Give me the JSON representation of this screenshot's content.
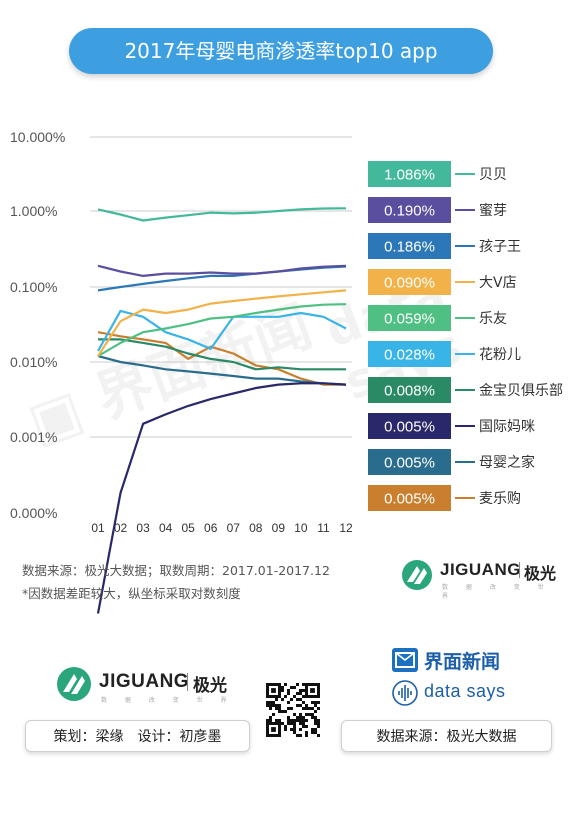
{
  "header": {
    "title": "2017年母婴电商渗透率top10 app"
  },
  "chart_data": {
    "type": "line",
    "title": "2017年母婴电商渗透率top10 app",
    "y_scale": "log",
    "ylim": [
      0.0005,
      10
    ],
    "y_ticks": [
      {
        "value": 10,
        "label": "10.000%"
      },
      {
        "value": 1,
        "label": "1.000%"
      },
      {
        "value": 0.1,
        "label": "0.100%"
      },
      {
        "value": 0.01,
        "label": "0.010%"
      },
      {
        "value": 0.001,
        "label": "0.001%"
      },
      {
        "value": 0.0005,
        "label": "0.000%"
      }
    ],
    "categories": [
      "01",
      "02",
      "03",
      "04",
      "05",
      "06",
      "07",
      "08",
      "09",
      "10",
      "11",
      "12"
    ],
    "grid": true,
    "legend_position": "right",
    "series": [
      {
        "name": "贝贝",
        "value_label": "1.086%",
        "color": "#43b89a",
        "values": [
          1.05,
          0.9,
          0.75,
          0.82,
          0.88,
          0.95,
          0.93,
          0.95,
          1.0,
          1.05,
          1.08,
          1.086
        ]
      },
      {
        "name": "蜜芽",
        "value_label": "0.190%",
        "color": "#5a4e9e",
        "values": [
          0.19,
          0.16,
          0.14,
          0.15,
          0.15,
          0.155,
          0.15,
          0.15,
          0.16,
          0.175,
          0.185,
          0.19
        ]
      },
      {
        "name": "孩子王",
        "value_label": "0.186%",
        "color": "#2c77b8",
        "values": [
          0.09,
          0.1,
          0.11,
          0.12,
          0.13,
          0.14,
          0.14,
          0.15,
          0.16,
          0.17,
          0.18,
          0.186
        ]
      },
      {
        "name": "大V店",
        "value_label": "0.090%",
        "color": "#f2b24a",
        "values": [
          0.012,
          0.035,
          0.05,
          0.045,
          0.05,
          0.06,
          0.065,
          0.07,
          0.075,
          0.08,
          0.085,
          0.09
        ]
      },
      {
        "name": "乐友",
        "value_label": "0.059%",
        "color": "#4fbf83",
        "values": [
          0.012,
          0.018,
          0.025,
          0.028,
          0.032,
          0.038,
          0.04,
          0.045,
          0.05,
          0.055,
          0.058,
          0.059
        ]
      },
      {
        "name": "花粉儿",
        "value_label": "0.028%",
        "color": "#39b4e6",
        "values": [
          0.014,
          0.048,
          0.04,
          0.025,
          0.02,
          0.015,
          0.04,
          0.04,
          0.04,
          0.045,
          0.04,
          0.028
        ]
      },
      {
        "name": "金宝贝俱乐部",
        "value_label": "0.008%",
        "color": "#2b8a66",
        "values": [
          0.02,
          0.02,
          0.018,
          0.016,
          0.013,
          0.011,
          0.01,
          0.008,
          0.0085,
          0.008,
          0.008,
          0.008
        ]
      },
      {
        "name": "国际妈咪",
        "value_label": "0.005%",
        "color": "#29286a",
        "values": [
          0.0002,
          0.0006,
          0.0015,
          0.002,
          0.0026,
          0.0032,
          0.0038,
          0.0045,
          0.005,
          0.0052,
          0.0052,
          0.005
        ]
      },
      {
        "name": "母婴之家",
        "value_label": "0.005%",
        "color": "#2a6c8e",
        "values": [
          0.012,
          0.01,
          0.009,
          0.008,
          0.0075,
          0.007,
          0.0065,
          0.006,
          0.006,
          0.0055,
          0.0052,
          0.005
        ]
      },
      {
        "name": "麦乐购",
        "value_label": "0.005%",
        "color": "#c97f2d",
        "values": [
          0.025,
          0.022,
          0.02,
          0.018,
          0.011,
          0.016,
          0.013,
          0.009,
          0.008,
          0.006,
          0.005,
          0.005
        ]
      }
    ]
  },
  "notes": {
    "source": "数据来源：极光大数据；取数周期：2017.01-2017.12",
    "disclaimer": "*因数据差距较大，纵坐标采取对数刻度"
  },
  "brand": {
    "jiguang_en": "JIGUANG",
    "jiguang_cn": "极光",
    "jiguang_sub": "数 据 改 变 世 界",
    "jiemian": "界面新闻",
    "datasays": "data says"
  },
  "footer": {
    "credits": "策划：梁缘　设计：初彦墨",
    "source": "数据来源：极光大数据"
  },
  "icons": {
    "jiguang_logo": "jiguang-logo-icon",
    "jiemian_logo": "jiemian-logo-icon",
    "datasays_logo": "datasays-logo-icon",
    "qr": "qr-code-icon"
  }
}
